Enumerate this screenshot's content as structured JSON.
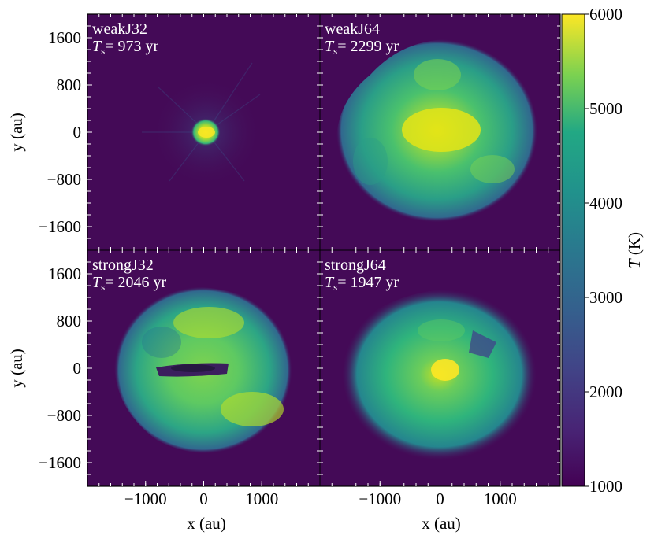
{
  "chart_data": {
    "type": "heatmap",
    "panels": [
      {
        "name": "weakJ32",
        "ts_label": "T",
        "ts_sub": "s",
        "ts_value": "= 973 yr"
      },
      {
        "name": "weakJ64",
        "ts_label": "T",
        "ts_sub": "s",
        "ts_value": "= 2299 yr"
      },
      {
        "name": "strongJ32",
        "ts_label": "T",
        "ts_sub": "s",
        "ts_value": "= 2046 yr"
      },
      {
        "name": "strongJ64",
        "ts_label": "T",
        "ts_sub": "s",
        "ts_value": "= 1947 yr"
      }
    ],
    "xlabel": "x (au)",
    "ylabel": "y (au)",
    "xlim": [
      -2000,
      2000
    ],
    "ylim": [
      -2000,
      2000
    ],
    "x_ticks": [
      -1000,
      0,
      1000
    ],
    "x_tick_labels": [
      "−1000",
      "0",
      "1000"
    ],
    "y_ticks": [
      1600,
      800,
      0,
      -800,
      -1600
    ],
    "y_tick_labels": [
      "1600",
      "800",
      "0",
      "−800",
      "−1600"
    ],
    "colorbar": {
      "label": "T (K)",
      "range": [
        1000,
        6000
      ],
      "ticks": [
        6000,
        5000,
        4000,
        3000,
        2000,
        1000
      ],
      "tick_labels": [
        "6000",
        "5000",
        "4000",
        "3000",
        "2000",
        "1000"
      ],
      "colormap": "viridis"
    },
    "approx_radius_au": [
      200,
      1650,
      1550,
      1450
    ]
  },
  "colors": {
    "background": "#440a57",
    "low": "#440154",
    "mid": "#21908d",
    "high": "#fde725"
  }
}
